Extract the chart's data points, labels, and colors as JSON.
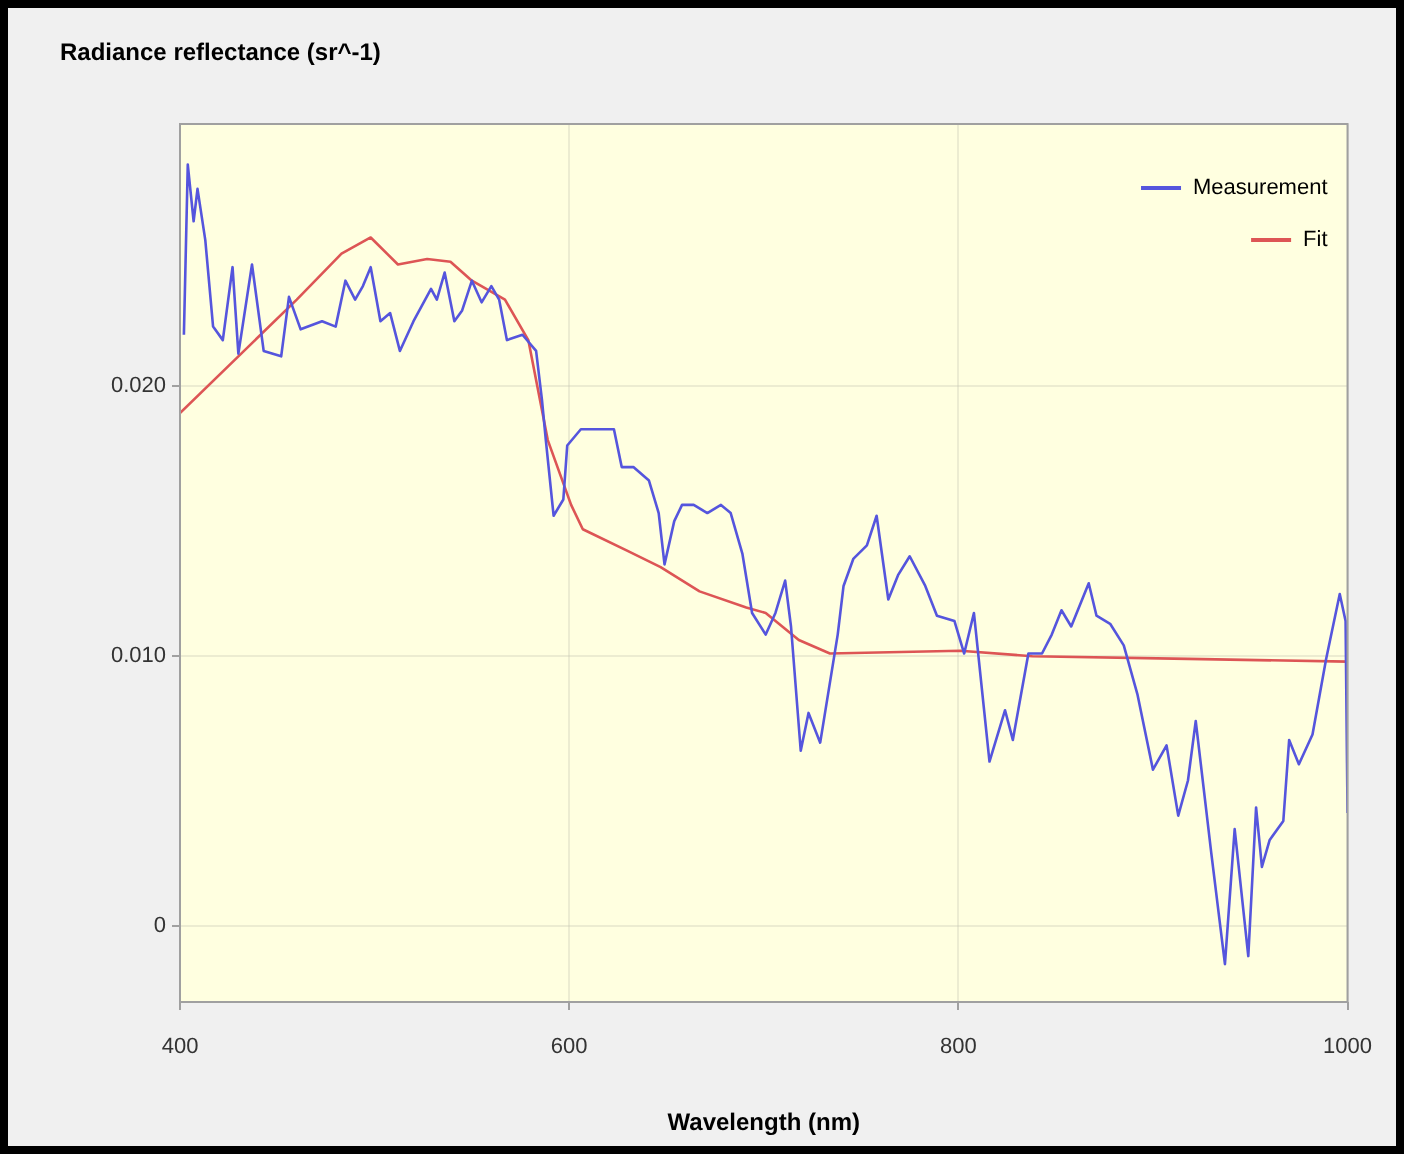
{
  "chart_data": {
    "type": "line",
    "xlabel": "Wavelength (nm)",
    "ylabel": "Radiance reflectance (sr^-1)",
    "xlim": [
      400,
      1000
    ],
    "xticks": [
      400,
      600,
      800,
      1000
    ],
    "ylim": [
      -0.0028,
      0.0297
    ],
    "yticks": [
      0,
      {
        "value": 0.01,
        "label": "0.010"
      },
      {
        "value": 0.02,
        "label": "0.020"
      }
    ],
    "grid": true,
    "legend": "top right",
    "marker": "none",
    "line_style": "solid",
    "series": [
      {
        "name": "Measurement",
        "color": "#5555dd",
        "x": [
          402,
          404,
          407,
          409,
          413,
          417,
          422,
          427,
          430,
          437,
          443,
          452,
          456,
          462,
          473,
          480,
          485,
          490,
          494,
          498,
          503,
          508,
          513,
          520,
          529,
          532,
          536,
          541,
          545,
          550,
          555,
          560,
          564,
          568,
          576,
          583,
          586,
          588,
          592,
          597,
          599,
          606,
          614,
          623,
          627,
          633,
          641,
          646,
          649,
          654,
          658,
          664,
          671,
          678,
          683,
          689,
          694,
          701,
          706,
          711,
          714,
          719,
          723,
          729,
          738,
          741,
          746,
          753,
          758,
          764,
          769,
          775,
          783,
          789,
          798,
          803,
          808,
          816,
          824,
          828,
          836,
          843,
          848,
          853,
          858,
          867,
          871,
          878,
          885,
          892,
          900,
          907,
          913,
          918,
          922,
          930,
          937,
          942,
          949,
          953,
          956,
          960,
          967,
          970,
          975,
          982,
          989,
          996,
          999,
          1000
        ],
        "values": [
          0.0219,
          0.0282,
          0.0261,
          0.0273,
          0.0254,
          0.0222,
          0.0217,
          0.0244,
          0.0212,
          0.0245,
          0.0213,
          0.0211,
          0.0233,
          0.0221,
          0.0224,
          0.0222,
          0.0239,
          0.0232,
          0.0237,
          0.0244,
          0.0224,
          0.0227,
          0.0213,
          0.0224,
          0.0236,
          0.0232,
          0.0242,
          0.0224,
          0.0228,
          0.0239,
          0.0231,
          0.0237,
          0.0232,
          0.0217,
          0.0219,
          0.0213,
          0.0195,
          0.018,
          0.0152,
          0.0158,
          0.0178,
          0.0184,
          0.0184,
          0.0184,
          0.017,
          0.017,
          0.0165,
          0.0153,
          0.0134,
          0.015,
          0.0156,
          0.0156,
          0.0153,
          0.0156,
          0.0153,
          0.0138,
          0.0116,
          0.0108,
          0.0116,
          0.0128,
          0.0111,
          0.0065,
          0.0079,
          0.0068,
          0.0108,
          0.0126,
          0.0136,
          0.0141,
          0.0152,
          0.0121,
          0.013,
          0.0137,
          0.0126,
          0.0115,
          0.0113,
          0.0101,
          0.0116,
          0.0061,
          0.008,
          0.0069,
          0.0101,
          0.0101,
          0.0108,
          0.0117,
          0.0111,
          0.0127,
          0.0115,
          0.0112,
          0.0104,
          0.0086,
          0.0058,
          0.0067,
          0.0041,
          0.0054,
          0.0076,
          0.0027,
          -0.0014,
          0.0036,
          -0.0011,
          0.0044,
          0.0022,
          0.0032,
          0.0039,
          0.0069,
          0.006,
          0.0071,
          0.0099,
          0.0123,
          0.0113,
          0.0042
        ]
      },
      {
        "name": "Fit",
        "color": "#dd5555",
        "x": [
          400,
          430,
          460,
          483,
          498,
          512,
          527,
          539,
          550,
          567,
          579,
          589,
          601,
          607,
          630,
          647,
          667,
          691,
          701,
          718,
          734,
          801,
          838,
          918,
          1000
        ],
        "values": [
          0.019,
          0.0211,
          0.0232,
          0.0249,
          0.0255,
          0.0245,
          0.0247,
          0.0246,
          0.0239,
          0.0232,
          0.0217,
          0.018,
          0.0156,
          0.0147,
          0.0139,
          0.0133,
          0.0124,
          0.0118,
          0.0116,
          0.0106,
          0.0101,
          0.0102,
          0.01,
          0.0099,
          0.0098
        ]
      }
    ]
  }
}
